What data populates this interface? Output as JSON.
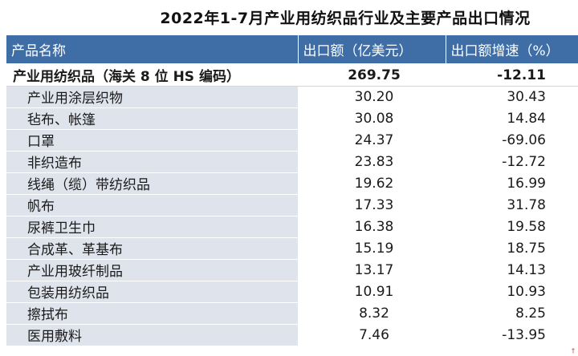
{
  "title": "2022年1-7月产业用纺织品行业及主要产品出口情况",
  "headers": {
    "name": "产品名称",
    "value": "出口额（亿美元）",
    "growth": "出口额增速（%）"
  },
  "total": {
    "name": "产业用纺织品（海关 8 位 HS 编码）",
    "value": "269.75",
    "growth": "-12.11"
  },
  "rows": [
    {
      "name": "产业用涂层织物",
      "value": "30.20",
      "growth": "30.43"
    },
    {
      "name": "毡布、帐篷",
      "value": "30.08",
      "growth": "14.84"
    },
    {
      "name": "口罩",
      "value": "24.37",
      "growth": "-69.06"
    },
    {
      "name": "非织造布",
      "value": "23.83",
      "growth": "-12.72"
    },
    {
      "name": "线绳（缆）带纺织品",
      "value": "19.62",
      "growth": "16.99"
    },
    {
      "name": "帆布",
      "value": "17.33",
      "growth": "31.78"
    },
    {
      "name": "尿裤卫生巾",
      "value": "16.38",
      "growth": "19.58"
    },
    {
      "name": "合成革、革基布",
      "value": "15.19",
      "growth": "18.75"
    },
    {
      "name": "产业用玻纤制品",
      "value": "13.17",
      "growth": "14.13"
    },
    {
      "name": "包装用纺织品",
      "value": "10.91",
      "growth": "10.93"
    },
    {
      "name": "擦拭布",
      "value": "8.32",
      "growth": "8.25"
    },
    {
      "name": "医用敷料",
      "value": "7.46",
      "growth": "-13.95"
    }
  ],
  "colors": {
    "header_bg": "#3f6da6",
    "header_text": "#ffffff",
    "name_cell_bg": "#dfe3ec"
  }
}
